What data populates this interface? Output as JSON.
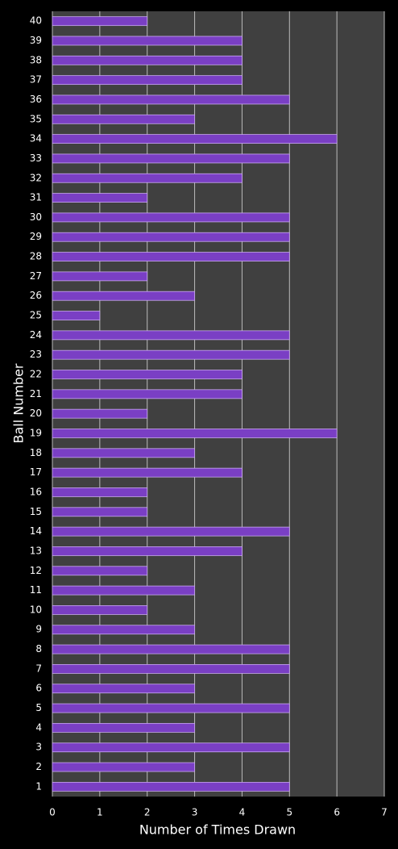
{
  "chart_data": {
    "type": "bar",
    "orientation": "horizontal",
    "x_label": "Number of Times Drawn",
    "y_label": "Ball Number",
    "categories": [
      "1",
      "2",
      "3",
      "4",
      "5",
      "6",
      "7",
      "8",
      "9",
      "10",
      "11",
      "12",
      "13",
      "14",
      "15",
      "16",
      "17",
      "18",
      "19",
      "20",
      "21",
      "22",
      "23",
      "24",
      "25",
      "26",
      "27",
      "28",
      "29",
      "30",
      "31",
      "32",
      "33",
      "34",
      "35",
      "36",
      "37",
      "38",
      "39",
      "40"
    ],
    "values": [
      5,
      3,
      5,
      3,
      5,
      3,
      5,
      5,
      3,
      2,
      3,
      2,
      4,
      5,
      2,
      2,
      4,
      3,
      6,
      2,
      4,
      4,
      5,
      5,
      1,
      3,
      2,
      5,
      5,
      5,
      2,
      4,
      5,
      6,
      3,
      5,
      4,
      4,
      4,
      2
    ],
    "color": "#7a3fc4",
    "xlim": [
      0,
      7
    ],
    "xticks": [
      0,
      1,
      2,
      3,
      4,
      5,
      6,
      7
    ],
    "grid": true
  }
}
